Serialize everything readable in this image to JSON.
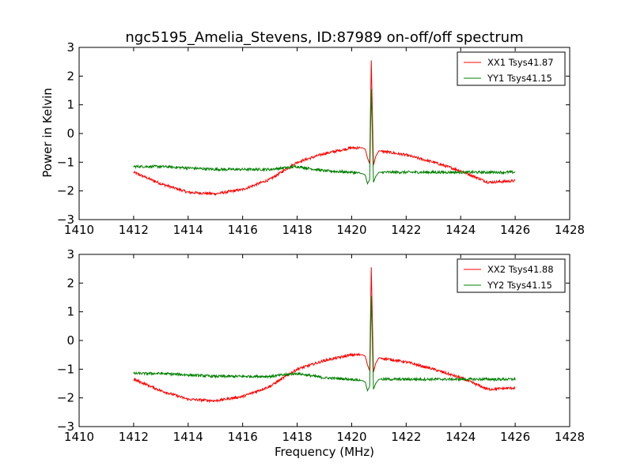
{
  "title": "ngc5195_Amelia_Stevens, ID:87989 on-off/off spectrum",
  "xlabel": "Frequency (MHz)",
  "ylabel": "Power in Kelvin",
  "colors": {
    "xx": "#ff0000",
    "yy": "#008000",
    "frame": "#000000"
  },
  "chart_data": [
    {
      "type": "line",
      "title": "ngc5195_Amelia_Stevens, ID:87989 on-off/off spectrum",
      "xlabel": "",
      "ylabel": "Power in Kelvin",
      "xlim": [
        1410,
        1428
      ],
      "ylim": [
        -3,
        3
      ],
      "xticks": [
        "1410",
        "1412",
        "1414",
        "1416",
        "1418",
        "1420",
        "1422",
        "1424",
        "1426",
        "1428"
      ],
      "yticks": [
        "3",
        "2",
        "1",
        "0",
        "−1",
        "−2",
        "−3"
      ],
      "legend": "upper right",
      "series": [
        {
          "name": "XX1 Tsys41.87",
          "color": "#ff0000",
          "x": [
            1412,
            1413,
            1414,
            1415,
            1416,
            1417,
            1418,
            1419,
            1420,
            1420.4,
            1420.5,
            1420.58,
            1420.66,
            1420.72,
            1420.8,
            1420.88,
            1421,
            1422,
            1423,
            1424,
            1425,
            1426
          ],
          "y": [
            -1.35,
            -1.75,
            -2.05,
            -2.1,
            -1.95,
            -1.6,
            -1.0,
            -0.7,
            -0.5,
            -0.5,
            -0.55,
            -0.85,
            -1.05,
            2.55,
            -1.1,
            -0.8,
            -0.6,
            -0.75,
            -1.0,
            -1.3,
            -1.7,
            -1.65
          ]
        },
        {
          "name": "YY1 Tsys41.15",
          "color": "#008000",
          "x": [
            1412,
            1413,
            1414,
            1415,
            1416,
            1417,
            1418,
            1419,
            1420,
            1420.4,
            1420.5,
            1420.58,
            1420.66,
            1420.72,
            1420.8,
            1420.88,
            1421,
            1422,
            1423,
            1424,
            1425,
            1426
          ],
          "y": [
            -1.15,
            -1.15,
            -1.2,
            -1.25,
            -1.25,
            -1.25,
            -1.15,
            -1.3,
            -1.35,
            -1.4,
            -1.45,
            -1.75,
            -1.6,
            1.55,
            -1.7,
            -1.5,
            -1.35,
            -1.35,
            -1.35,
            -1.35,
            -1.35,
            -1.35
          ]
        }
      ]
    },
    {
      "type": "line",
      "title": "",
      "xlabel": "Frequency (MHz)",
      "ylabel": "",
      "xlim": [
        1410,
        1428
      ],
      "ylim": [
        -3,
        3
      ],
      "xticks": [
        "1410",
        "1412",
        "1414",
        "1416",
        "1418",
        "1420",
        "1422",
        "1424",
        "1426",
        "1428"
      ],
      "yticks": [
        "3",
        "2",
        "1",
        "0",
        "−1",
        "−2",
        "−3"
      ],
      "legend": "upper right",
      "series": [
        {
          "name": "XX2 Tsys41.88",
          "color": "#ff0000",
          "x": [
            1412,
            1413,
            1414,
            1415,
            1416,
            1417,
            1418,
            1419,
            1420,
            1420.4,
            1420.5,
            1420.58,
            1420.66,
            1420.72,
            1420.8,
            1420.88,
            1421,
            1422,
            1423,
            1424,
            1425,
            1426
          ],
          "y": [
            -1.35,
            -1.75,
            -2.05,
            -2.1,
            -1.95,
            -1.6,
            -1.0,
            -0.7,
            -0.5,
            -0.5,
            -0.55,
            -0.85,
            -1.05,
            2.55,
            -1.1,
            -0.8,
            -0.6,
            -0.75,
            -1.0,
            -1.3,
            -1.7,
            -1.65
          ]
        },
        {
          "name": "YY2 Tsys41.15",
          "color": "#008000",
          "x": [
            1412,
            1413,
            1414,
            1415,
            1416,
            1417,
            1418,
            1419,
            1420,
            1420.4,
            1420.5,
            1420.58,
            1420.66,
            1420.72,
            1420.8,
            1420.88,
            1421,
            1422,
            1423,
            1424,
            1425,
            1426
          ],
          "y": [
            -1.15,
            -1.15,
            -1.2,
            -1.25,
            -1.25,
            -1.25,
            -1.15,
            -1.3,
            -1.35,
            -1.4,
            -1.45,
            -1.75,
            -1.6,
            1.55,
            -1.7,
            -1.5,
            -1.35,
            -1.35,
            -1.35,
            -1.35,
            -1.35,
            -1.35
          ]
        }
      ]
    }
  ]
}
